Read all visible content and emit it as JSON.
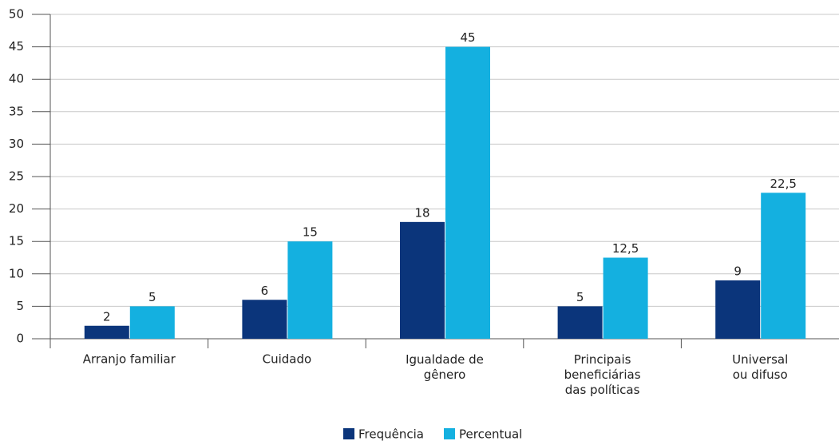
{
  "chart_data": {
    "type": "bar",
    "categories": [
      "Arranjo familiar",
      "Cuidado",
      "Igualdade de\ngênero",
      "Principais\nbeneficiárias\ndas políticas",
      "Universal\nou difuso"
    ],
    "series": [
      {
        "name": "Frequência",
        "color": "#0b357b",
        "values": [
          2,
          6,
          18,
          5,
          9
        ]
      },
      {
        "name": "Percentual",
        "color": "#14b0e0",
        "values": [
          5,
          15,
          45,
          12.5,
          22.5
        ],
        "value_labels": [
          "5",
          "15",
          "45",
          "12,5",
          "22,5"
        ]
      }
    ],
    "ylim": [
      0,
      50
    ],
    "yticks": [
      0,
      5,
      10,
      15,
      20,
      25,
      30,
      35,
      40,
      45,
      50
    ],
    "grid": true,
    "legend": "bottom"
  }
}
